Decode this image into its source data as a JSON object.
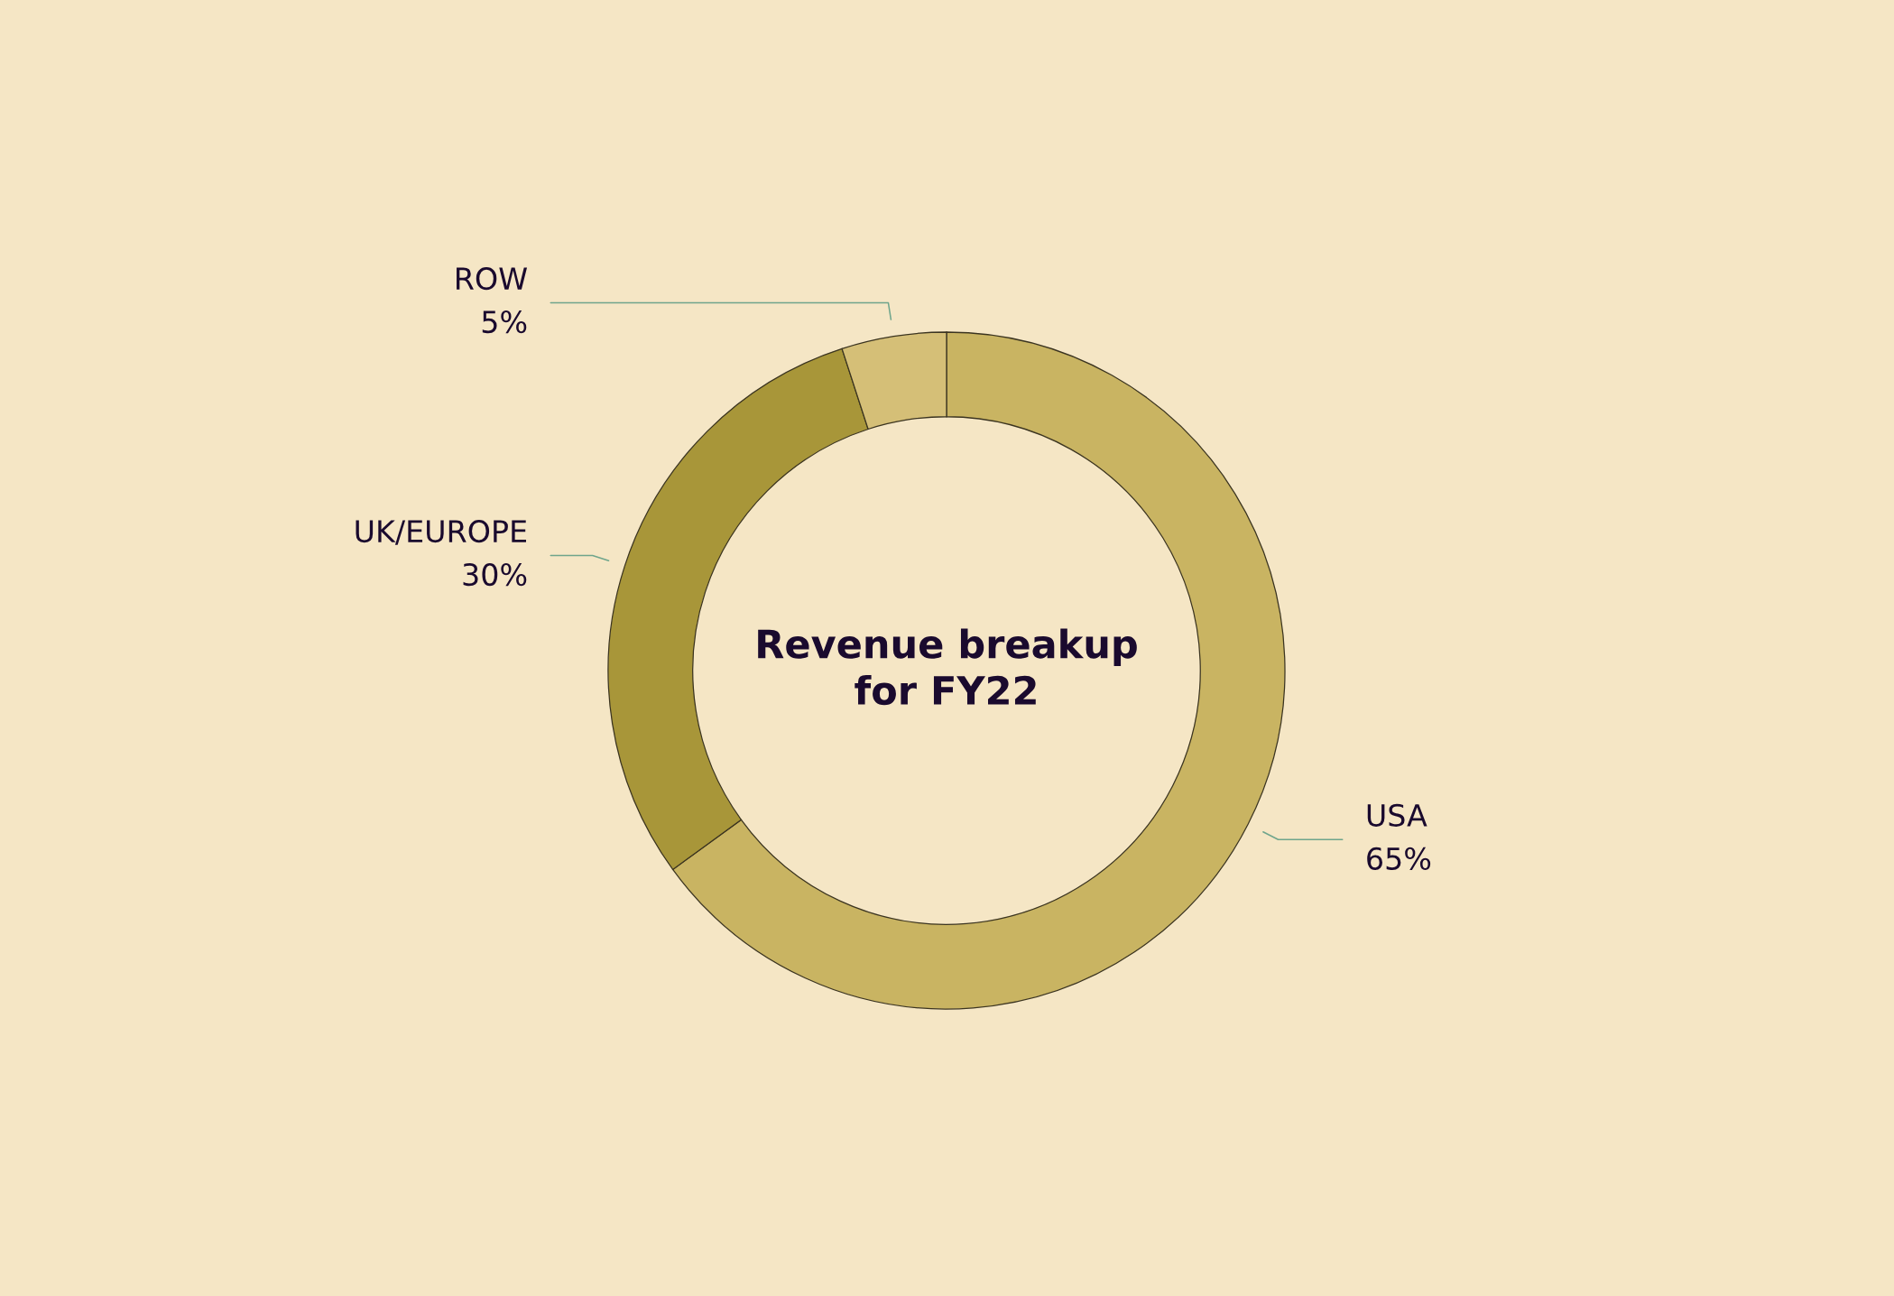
{
  "chart_data": {
    "type": "donut",
    "title": "Revenue breakup\nfor FY22",
    "categories": [
      "USA",
      "UK/EUROPE",
      "ROW"
    ],
    "values": [
      65,
      30,
      5
    ],
    "colors": [
      "#c9b462",
      "#a89639",
      "#d5bf77"
    ],
    "value_labels": [
      "65%",
      "30%",
      "5%"
    ]
  }
}
